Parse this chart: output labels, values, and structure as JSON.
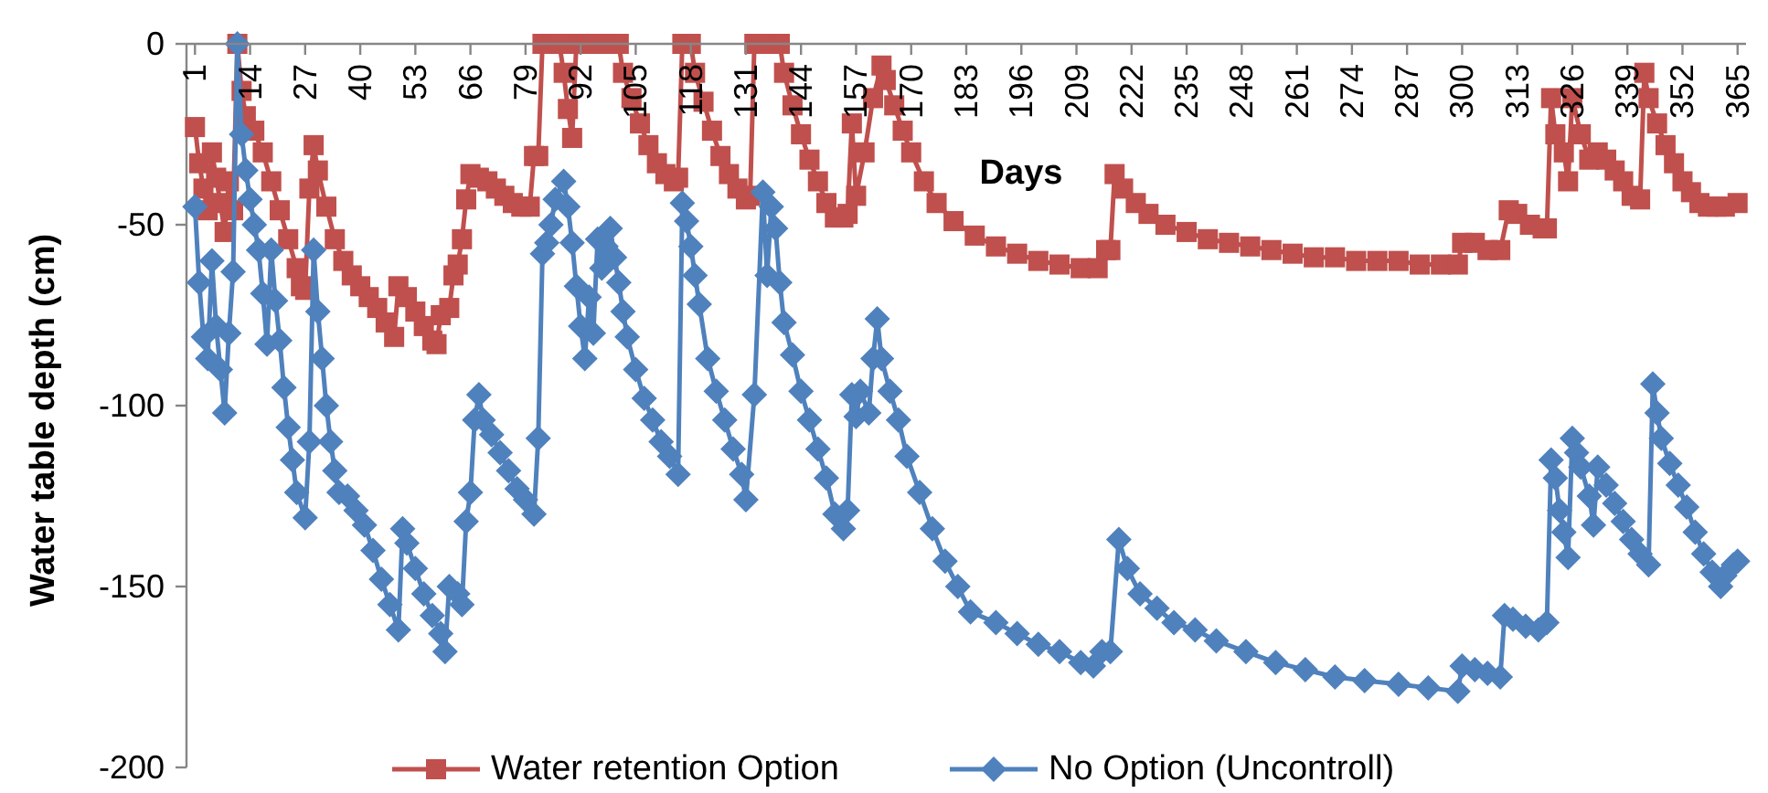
{
  "chart_data": {
    "type": "line",
    "xlabel": "Days",
    "ylabel": "Water table depth (cm)",
    "xlim": [
      -1,
      367
    ],
    "xticks": [
      1,
      14,
      27,
      40,
      53,
      66,
      79,
      92,
      105,
      118,
      131,
      144,
      157,
      170,
      183,
      196,
      209,
      222,
      235,
      248,
      261,
      274,
      287,
      300,
      313,
      326,
      339,
      352,
      365
    ],
    "ylim": [
      -200,
      0
    ],
    "yticks": [
      0,
      -50,
      -100,
      -150,
      -200
    ],
    "legend": "bottom",
    "series": [
      {
        "name": "Water retention Option",
        "color": "#c0504d",
        "marker": "square",
        "x": [
          1,
          2,
          3,
          4,
          5,
          6,
          7,
          8,
          9,
          10,
          11,
          12,
          13,
          15,
          17,
          19,
          21,
          23,
          25,
          26,
          27,
          28,
          29,
          30,
          32,
          34,
          36,
          38,
          40,
          42,
          44,
          46,
          48,
          49,
          51,
          53,
          55,
          57,
          58,
          59,
          61,
          62,
          63,
          64,
          65,
          66,
          68,
          70,
          72,
          74,
          76,
          78,
          80,
          81,
          82,
          83,
          85,
          87,
          88,
          89,
          90,
          91,
          93,
          95,
          97,
          99,
          101,
          102,
          104,
          106,
          108,
          110,
          112,
          114,
          115,
          116,
          118,
          119,
          121,
          123,
          125,
          127,
          129,
          131,
          132,
          133,
          135,
          137,
          139,
          140,
          142,
          144,
          146,
          148,
          150,
          152,
          154,
          155,
          156,
          157,
          159,
          161,
          163,
          164,
          166,
          168,
          170,
          173,
          176,
          180,
          185,
          190,
          195,
          200,
          205,
          210,
          214,
          216,
          217,
          218,
          220,
          223,
          226,
          230,
          235,
          240,
          245,
          250,
          255,
          260,
          265,
          270,
          275,
          280,
          285,
          290,
          295,
          299,
          300,
          303,
          306,
          309,
          311,
          313,
          316,
          319,
          320,
          321,
          322,
          324,
          325,
          326,
          328,
          330,
          332,
          334,
          336,
          338,
          340,
          342,
          343,
          344,
          346,
          348,
          350,
          352,
          354,
          356,
          358,
          360,
          362,
          365
        ],
        "values": [
          -23,
          -33,
          -40,
          -46,
          -30,
          -37,
          -44,
          -52,
          -38,
          -46,
          0,
          -13,
          -20,
          -24,
          -30,
          -38,
          -46,
          -54,
          -62,
          -67,
          -68,
          -40,
          -28,
          -35,
          -45,
          -54,
          -60,
          -64,
          -67,
          -70,
          -73,
          -77,
          -81,
          -67,
          -70,
          -74,
          -78,
          -82,
          -83,
          -75,
          -73,
          -64,
          -61,
          -54,
          -43,
          -36,
          -37,
          -38,
          -40,
          -42,
          -44,
          -45,
          -45,
          -31,
          -31,
          0,
          0,
          0,
          -8,
          -18,
          -26,
          0,
          0,
          0,
          0,
          0,
          0,
          -8,
          -15,
          -22,
          -28,
          -33,
          -36,
          -38,
          -37,
          0,
          0,
          -8,
          -16,
          -24,
          -31,
          -36,
          -40,
          -43,
          -42,
          0,
          0,
          0,
          0,
          -8,
          -17,
          -25,
          -32,
          -38,
          -44,
          -48,
          -48,
          -47,
          -22,
          -42,
          -30,
          -15,
          -6,
          -10,
          -17,
          -24,
          -30,
          -38,
          -44,
          -49,
          -53,
          -56,
          -58,
          -60,
          -61,
          -62,
          -62,
          -57,
          -57,
          -36,
          -40,
          -44,
          -47,
          -50,
          -52,
          -54,
          -55,
          -56,
          -57,
          -58,
          -59,
          -59,
          -60,
          -60,
          -60,
          -61,
          -61,
          -61,
          -55,
          -55,
          -57,
          -57,
          -46,
          -47,
          -50,
          -51,
          -51,
          -15,
          -25,
          -30,
          -38,
          -15,
          -25,
          -32,
          -30,
          -32,
          -35,
          -38,
          -42,
          -43,
          -8,
          -15,
          -22,
          -28,
          -33,
          -38,
          -41,
          -44,
          -45,
          -45,
          -45,
          -44
        ]
      },
      {
        "name": "No Option (Uncontroll)",
        "color": "#4f81bd",
        "marker": "diamond",
        "x": [
          1,
          2,
          3,
          4,
          5,
          6,
          7,
          8,
          9,
          10,
          11,
          12,
          13,
          14,
          15,
          16,
          17,
          18,
          19,
          20,
          21,
          22,
          23,
          24,
          25,
          27,
          28,
          29,
          30,
          31,
          32,
          33,
          34,
          35,
          37,
          39,
          41,
          43,
          45,
          47,
          49,
          50,
          51,
          53,
          55,
          57,
          59,
          60,
          61,
          63,
          64,
          65,
          66,
          67,
          68,
          69,
          71,
          73,
          75,
          77,
          79,
          81,
          82,
          83,
          84,
          85,
          86,
          88,
          89,
          90,
          91,
          92,
          93,
          94,
          95,
          96,
          97,
          98,
          99,
          100,
          101,
          102,
          103,
          105,
          107,
          109,
          111,
          113,
          115,
          116,
          117,
          118,
          119,
          120,
          122,
          124,
          126,
          128,
          130,
          131,
          133,
          135,
          136,
          137,
          138,
          139,
          140,
          142,
          144,
          146,
          148,
          150,
          152,
          154,
          155,
          156,
          157,
          158,
          160,
          161,
          162,
          163,
          165,
          167,
          169,
          172,
          175,
          178,
          181,
          184,
          190,
          195,
          200,
          205,
          210,
          213,
          215,
          217,
          219,
          221,
          224,
          228,
          232,
          237,
          242,
          249,
          256,
          263,
          270,
          277,
          285,
          292,
          299,
          300,
          303,
          306,
          309,
          310,
          312,
          315,
          318,
          320,
          321,
          322,
          323,
          324,
          325,
          326,
          327,
          328,
          330,
          331,
          332,
          334,
          336,
          338,
          340,
          342,
          344,
          345,
          346,
          347,
          349,
          351,
          353,
          355,
          357,
          359,
          361,
          362,
          364,
          365
        ],
        "values": [
          -45,
          -66,
          -81,
          -87,
          -60,
          -78,
          -90,
          -102,
          -80,
          -63,
          0,
          -25,
          -35,
          -43,
          -50,
          -57,
          -69,
          -83,
          -57,
          -71,
          -82,
          -95,
          -106,
          -115,
          -124,
          -131,
          -110,
          -57,
          -74,
          -87,
          -100,
          -110,
          -118,
          -124,
          -125,
          -129,
          -133,
          -140,
          -148,
          -155,
          -162,
          -134,
          -138,
          -145,
          -152,
          -158,
          -163,
          -168,
          -150,
          -152,
          -155,
          -132,
          -124,
          -104,
          -97,
          -104,
          -108,
          -113,
          -118,
          -123,
          -126,
          -130,
          -109,
          -58,
          -55,
          -50,
          -43,
          -38,
          -45,
          -55,
          -67,
          -78,
          -87,
          -70,
          -80,
          -54,
          -62,
          -56,
          -51,
          -59,
          -66,
          -74,
          -81,
          -90,
          -98,
          -104,
          -110,
          -114,
          -119,
          -44,
          -49,
          -56,
          -64,
          -72,
          -87,
          -96,
          -104,
          -112,
          -119,
          -126,
          -97,
          -41,
          -64,
          -45,
          -51,
          -66,
          -77,
          -86,
          -96,
          -104,
          -112,
          -120,
          -130,
          -134,
          -129,
          -97,
          -103,
          -96,
          -102,
          -87,
          -76,
          -87,
          -96,
          -104,
          -114,
          -124,
          -134,
          -143,
          -150,
          -157,
          -160,
          -163,
          -166,
          -168,
          -171,
          -172,
          -168,
          -168,
          -137,
          -145,
          -152,
          -156,
          -160,
          -162,
          -165,
          -168,
          -171,
          -173,
          -175,
          -176,
          -177,
          -178,
          -179,
          -172,
          -173,
          -174,
          -175,
          -158,
          -159,
          -161,
          -162,
          -160,
          -115,
          -120,
          -129,
          -135,
          -142,
          -109,
          -113,
          -117,
          -125,
          -133,
          -117,
          -122,
          -127,
          -132,
          -137,
          -141,
          -144,
          -94,
          -102,
          -109,
          -116,
          -122,
          -128,
          -135,
          -141,
          -146,
          -150,
          -147,
          -144,
          -143
        ]
      }
    ]
  }
}
